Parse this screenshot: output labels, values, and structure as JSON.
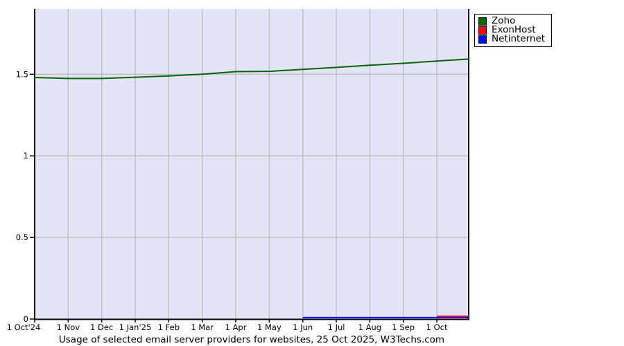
{
  "chart_data": {
    "type": "line",
    "title": "Usage of selected email server providers for websites, 25 Oct 2025, W3Techs.com",
    "xlabel": "",
    "ylabel": "",
    "x_tick_labels": [
      "1 Oct'24",
      "1 Nov",
      "1 Dec",
      "1 Jan'25",
      "1 Feb",
      "1 Mar",
      "1 Apr",
      "1 May",
      "1 Jun",
      "1 Jul",
      "1 Aug",
      "1 Sep",
      "1 Oct"
    ],
    "y_ticks": [
      0,
      0.5,
      1,
      1.5
    ],
    "y_tick_labels": [
      "0",
      "0.5",
      "1",
      "1.5"
    ],
    "ylim": [
      0,
      1.9
    ],
    "x_range_note": "monthly from 1 Oct 2024 to 25 Oct 2025, unit index 0-12.95",
    "grid": true,
    "legend_position": "top-right",
    "colors": {
      "plot_background": "#e4e4f6",
      "grid": "#bbbbbb",
      "axis": "#000000"
    },
    "series": [
      {
        "name": "Zoho",
        "color": "#006400",
        "points": [
          [
            0,
            1.48
          ],
          [
            1,
            1.474
          ],
          [
            2,
            1.474
          ],
          [
            3,
            1.482
          ],
          [
            4,
            1.49
          ],
          [
            5,
            1.5
          ],
          [
            6,
            1.516
          ],
          [
            7,
            1.518
          ],
          [
            8,
            1.53
          ],
          [
            9,
            1.542
          ],
          [
            10,
            1.555
          ],
          [
            11,
            1.567
          ],
          [
            12,
            1.581
          ],
          [
            12.95,
            1.593
          ]
        ]
      },
      {
        "name": "ExonHost",
        "color": "#ff0000",
        "points": [
          [
            12,
            0.017
          ],
          [
            12.95,
            0.017
          ]
        ]
      },
      {
        "name": "Netinternet",
        "color": "#0000ff",
        "points": [
          [
            8,
            0.009
          ],
          [
            12.95,
            0.009
          ]
        ]
      }
    ]
  }
}
